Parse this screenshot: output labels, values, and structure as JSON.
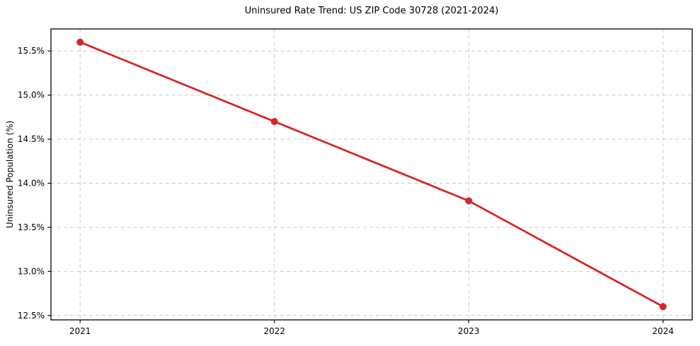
{
  "chart_data": {
    "type": "line",
    "title": "Uninsured Rate Trend: US ZIP Code 30728 (2021-2024)",
    "xlabel": "",
    "ylabel": "Uninsured Population (%)",
    "x": [
      2021,
      2022,
      2023,
      2024
    ],
    "series": [
      {
        "name": "Uninsured rate",
        "values": [
          15.6,
          14.7,
          13.8,
          12.6
        ]
      }
    ],
    "xtick_labels": [
      "2021",
      "2022",
      "2023",
      "2024"
    ],
    "ytick_values": [
      12.5,
      13.0,
      13.5,
      14.0,
      14.5,
      15.0,
      15.5
    ],
    "ytick_labels": [
      "12.5%",
      "13.0%",
      "13.5%",
      "14.0%",
      "14.5%",
      "15.0%",
      "15.5%"
    ],
    "xlim": [
      2020.85,
      2024.15
    ],
    "ylim": [
      12.45,
      15.75
    ],
    "grid": true,
    "grid_style": "dashed",
    "legend": "none",
    "line_color": "#d62728",
    "marker": "circle",
    "marker_color": "#d62728",
    "grid_color": "#cccccc",
    "axis_color": "#000000",
    "background_color": "#ffffff"
  }
}
